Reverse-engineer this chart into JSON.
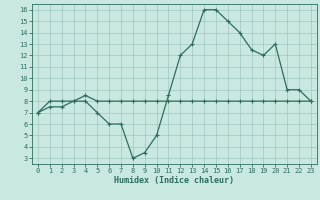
{
  "line1_x": [
    0,
    1,
    2,
    3,
    4,
    5,
    6,
    7,
    8,
    9,
    10,
    11,
    12,
    13,
    14,
    15,
    16,
    17,
    18,
    19,
    20,
    21,
    22,
    23
  ],
  "line1_y": [
    7,
    8,
    8,
    8,
    8,
    7,
    6,
    6,
    3,
    3.5,
    5,
    8.5,
    12,
    13,
    16,
    16,
    15,
    14,
    12.5,
    12,
    13,
    9,
    9,
    8
  ],
  "line2_x": [
    0,
    1,
    2,
    3,
    4,
    5,
    6,
    7,
    8,
    9,
    10,
    11,
    12,
    13,
    14,
    15,
    16,
    17,
    18,
    19,
    20,
    21,
    22,
    23
  ],
  "line2_y": [
    7,
    7.5,
    7.5,
    8,
    8.5,
    8,
    8,
    8,
    8,
    8,
    8,
    8,
    8,
    8,
    8,
    8,
    8,
    8,
    8,
    8,
    8,
    8,
    8,
    8
  ],
  "color": "#2d6e5e",
  "bg_color": "#c8e8e0",
  "grid_color": "#a0c8c0",
  "xlabel": "Humidex (Indice chaleur)",
  "xlim": [
    -0.5,
    23.5
  ],
  "ylim": [
    2.5,
    16.5
  ],
  "xticks": [
    0,
    1,
    2,
    3,
    4,
    5,
    6,
    7,
    8,
    9,
    10,
    11,
    12,
    13,
    14,
    15,
    16,
    17,
    18,
    19,
    20,
    21,
    22,
    23
  ],
  "yticks": [
    3,
    4,
    5,
    6,
    7,
    8,
    9,
    10,
    11,
    12,
    13,
    14,
    15,
    16
  ],
  "xlabel_fontsize": 6.0,
  "tick_fontsize": 5.0
}
